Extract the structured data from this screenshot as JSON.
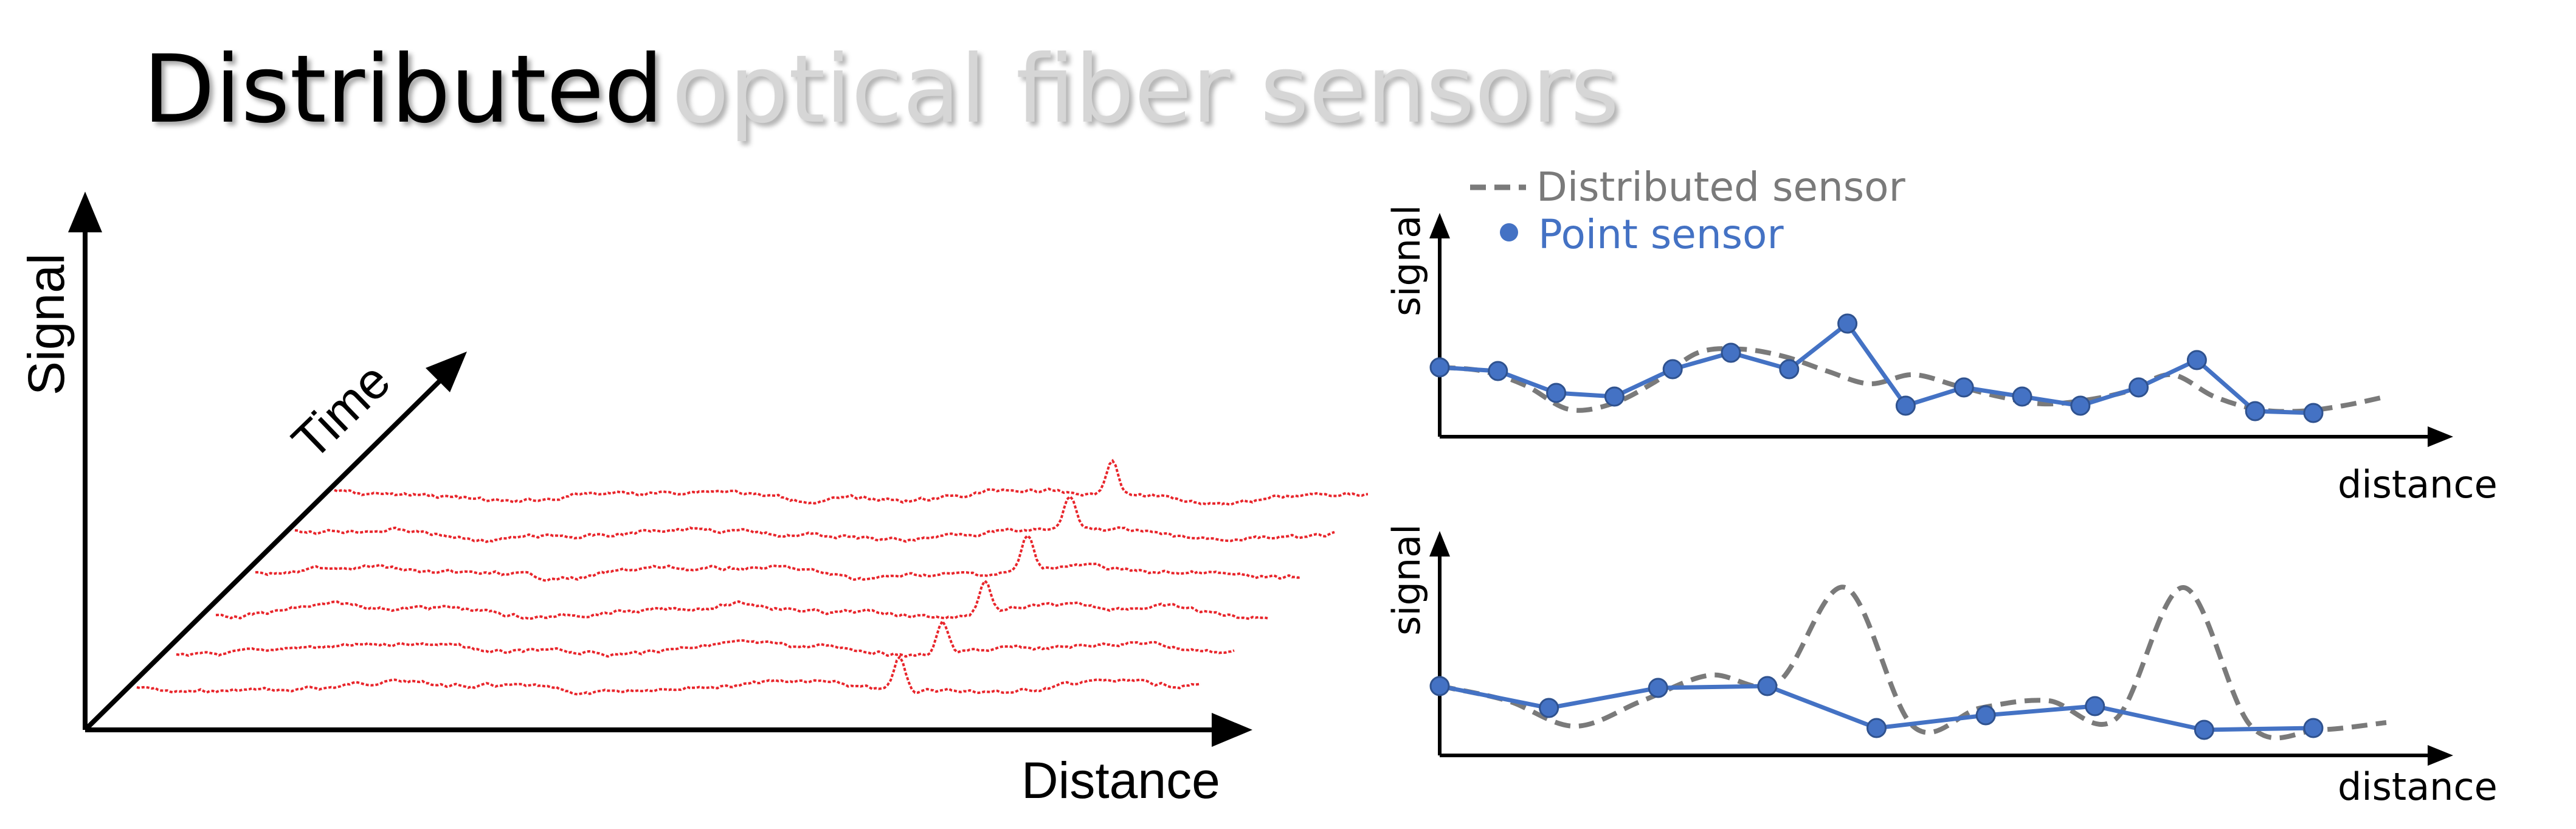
{
  "title": {
    "main": "Distributed",
    "sub": "optical fiber sensors"
  },
  "colors": {
    "red_trace": "#e8252b",
    "distributed": "#7a7a7a",
    "point": "#4472c4",
    "title_sub": "#d6d6d6",
    "axis": "#000000"
  },
  "left_diagram": {
    "y_label": "Signal",
    "time_label": "Time",
    "x_label": "Distance"
  },
  "right_panels": {
    "legend": {
      "distributed_label": "Distributed sensor",
      "point_label": "Point sensor"
    },
    "top": {
      "y_label": "signal",
      "x_label": "distance"
    },
    "bottom": {
      "y_label": "signal",
      "x_label": "distance"
    }
  },
  "chart_data": [
    {
      "type": "line",
      "series": [
        {
          "name": "Distributed sensor",
          "style": "dashed",
          "x": [
            0,
            1,
            2,
            3,
            4,
            5,
            6,
            7,
            8,
            9,
            10,
            11,
            12,
            13,
            14,
            15,
            16,
            17,
            18,
            19,
            20,
            21,
            22
          ],
          "values": [
            0.38,
            0.36,
            0.28,
            0.15,
            0.18,
            0.3,
            0.46,
            0.48,
            0.44,
            0.36,
            0.29,
            0.34,
            0.28,
            0.22,
            0.18,
            0.2,
            0.25,
            0.34,
            0.22,
            0.15,
            0.14,
            0.17,
            0.22
          ]
        },
        {
          "name": "Point sensor",
          "style": "solid-markers",
          "x": [
            0,
            1,
            2,
            3,
            4,
            5,
            6,
            7,
            8,
            9,
            10,
            11,
            12,
            13,
            14,
            15
          ],
          "values": [
            0.38,
            0.36,
            0.24,
            0.22,
            0.37,
            0.46,
            0.37,
            0.62,
            0.17,
            0.27,
            0.22,
            0.17,
            0.27,
            0.42,
            0.14,
            0.13
          ]
        }
      ]
    },
    {
      "type": "line",
      "series": [
        {
          "name": "Distributed sensor",
          "style": "dashed",
          "values": [
            0.38,
            0.3,
            0.16,
            0.3,
            0.44,
            0.4,
            0.92,
            0.16,
            0.26,
            0.3,
            0.2,
            0.92,
            0.16,
            0.14,
            0.18
          ]
        },
        {
          "name": "Point sensor",
          "style": "solid-markers",
          "values": [
            0.38,
            0.26,
            0.37,
            0.38,
            0.15,
            0.22,
            0.27,
            0.14,
            0.15
          ]
        }
      ]
    }
  ]
}
